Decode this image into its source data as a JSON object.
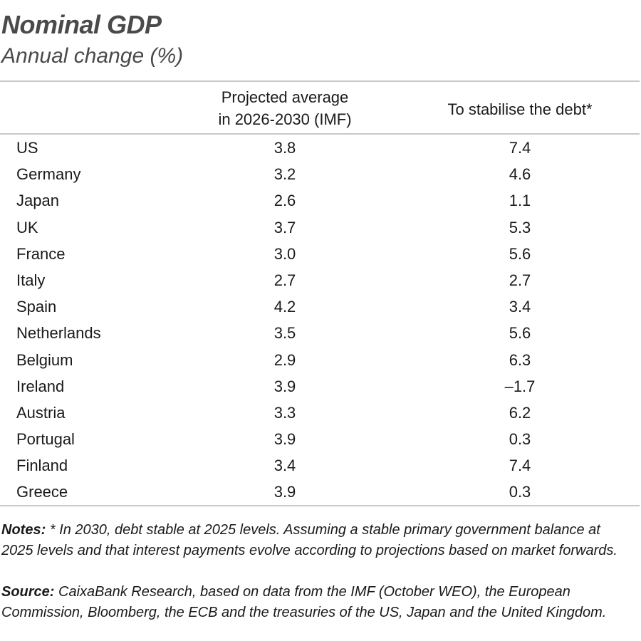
{
  "title": "Nominal GDP",
  "subtitle": "Annual change (%)",
  "table": {
    "headers": {
      "col1_line1": "Projected average",
      "col1_line2": "in 2026-2030 (IMF)",
      "col2": "To stabilise the debt*"
    },
    "rows": [
      {
        "country": "US",
        "projected": "3.8",
        "stabilise": "7.4"
      },
      {
        "country": "Germany",
        "projected": "3.2",
        "stabilise": "4.6"
      },
      {
        "country": "Japan",
        "projected": "2.6",
        "stabilise": "1.1"
      },
      {
        "country": "UK",
        "projected": "3.7",
        "stabilise": "5.3"
      },
      {
        "country": "France",
        "projected": "3.0",
        "stabilise": "5.6"
      },
      {
        "country": "Italy",
        "projected": "2.7",
        "stabilise": "2.7"
      },
      {
        "country": "Spain",
        "projected": "4.2",
        "stabilise": "3.4"
      },
      {
        "country": "Netherlands",
        "projected": "3.5",
        "stabilise": "5.6"
      },
      {
        "country": "Belgium",
        "projected": "2.9",
        "stabilise": "6.3"
      },
      {
        "country": "Ireland",
        "projected": "3.9",
        "stabilise": "–1.7"
      },
      {
        "country": "Austria",
        "projected": "3.3",
        "stabilise": "6.2"
      },
      {
        "country": "Portugal",
        "projected": "3.9",
        "stabilise": "0.3"
      },
      {
        "country": "Finland",
        "projected": "3.4",
        "stabilise": "7.4"
      },
      {
        "country": "Greece",
        "projected": "3.9",
        "stabilise": "0.3"
      }
    ]
  },
  "notes": {
    "label": "Notes:",
    "text": " * In 2030, debt stable at 2025 levels. Assuming a stable primary government balance at 2025 levels and that interest payments evolve according to projections based on market forwards."
  },
  "source": {
    "label": "Source:",
    "text": " CaixaBank Research, based on data from the IMF (October WEO), the European Commission, Bloomberg, the ECB and the treasuries of the US, Japan and the United Kingdom."
  },
  "colors": {
    "title": "#4a4a4a",
    "rule": "#c4cacf",
    "text": "#1a1a1a"
  }
}
